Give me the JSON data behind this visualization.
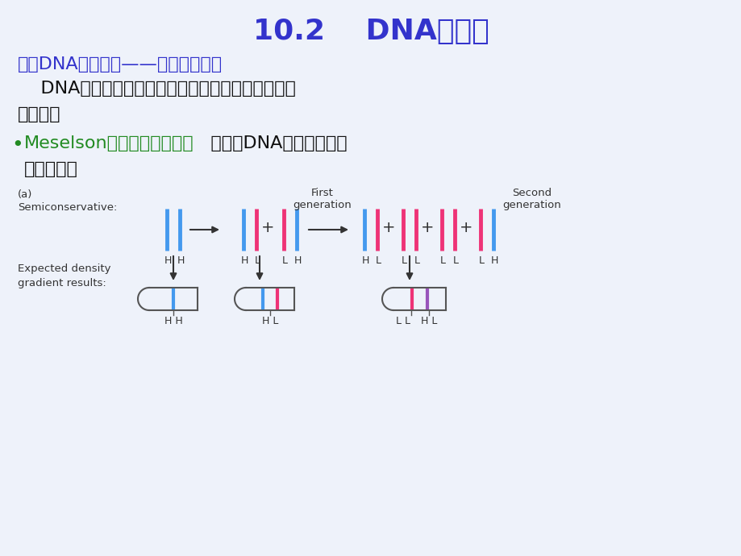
{
  "title": "10.2    DNA的复制",
  "title_color": "#3333CC",
  "title_fontsize": 26,
  "bg_color": "#EEF2FA",
  "line1_blue": "一、DNA复制原则——半保留性复制",
  "line1_color": "#3333CC",
  "line2": "    DNA复制方式有三种可能性，即全保留、半保留和",
  "line3": "分散式。",
  "line2_color": "#111111",
  "bullet_green": "Meselson等的氮同位素试验",
  "bullet_black1": "   证明了DNA复制为半保留",
  "bullet_line2": "复制机理。",
  "green_color": "#228B22",
  "black_color": "#111111",
  "blue_strand": "#4499EE",
  "pink_strand": "#EE3377",
  "purple_strand": "#9955BB"
}
